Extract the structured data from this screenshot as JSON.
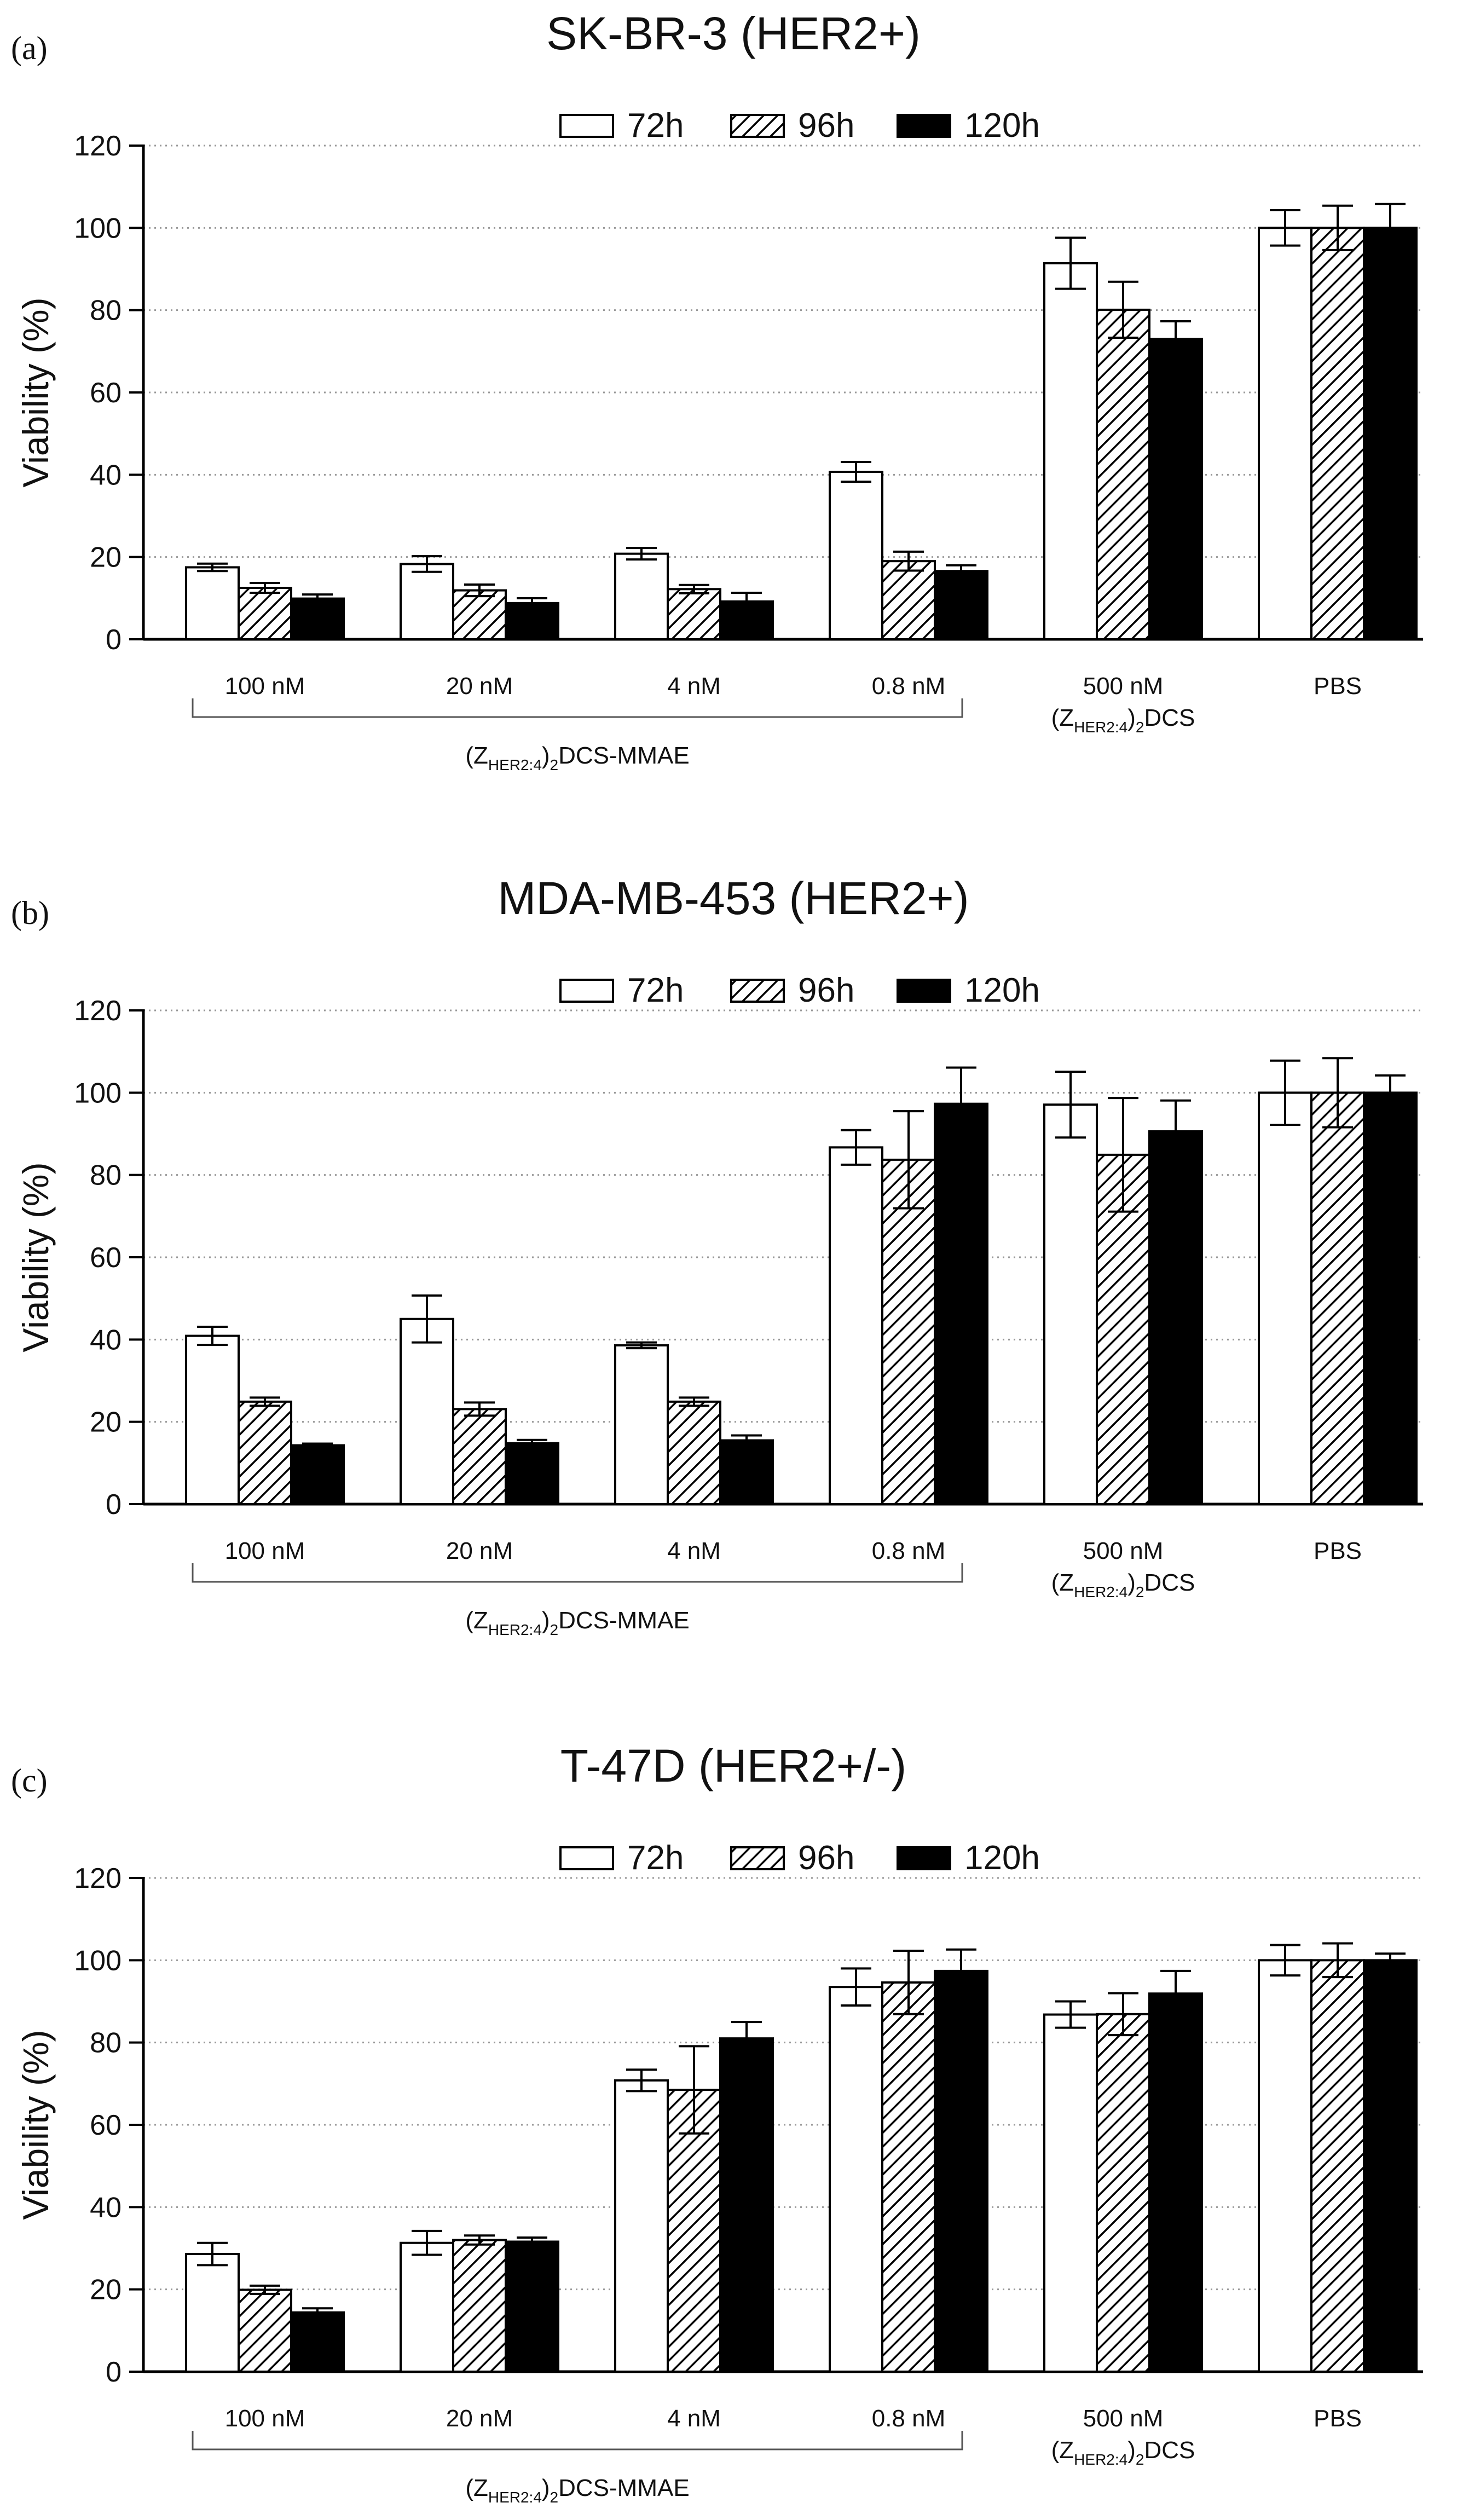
{
  "legend_swatch_names": [
    "72h",
    "96h",
    "120h"
  ],
  "chart_data": [
    {
      "type": "bar",
      "panel_label": "(a)",
      "title": "SK-BR-3 (HER2+)",
      "xlabel": "",
      "ylabel": "Viability (%)",
      "ylim": [
        0,
        120
      ],
      "yticks": [
        0,
        20,
        40,
        60,
        80,
        100,
        120
      ],
      "grid": true,
      "legend_position": "top-center",
      "categories": [
        "100 nM",
        "20 nM",
        "4 nM",
        "0.8 nM",
        "500 nM",
        "PBS"
      ],
      "group_labels": [
        {
          "prefix": "(Z",
          "sub1": "HER2:4",
          "mid": ")",
          "sub2": "2",
          "suffix": "DCS-MMAE",
          "spans": [
            0,
            3
          ]
        },
        {
          "prefix": "(Z",
          "sub1": "HER2:4",
          "mid": ")",
          "sub2": "2",
          "suffix": "DCS",
          "spans": [
            4,
            4
          ]
        }
      ],
      "series": [
        {
          "name": "72h",
          "fill": "#ffffff",
          "values": [
            17.5,
            18.3,
            20.8,
            40.7,
            91.4,
            100.0
          ],
          "errors": [
            0.9,
            1.9,
            1.4,
            2.4,
            6.2,
            4.3
          ]
        },
        {
          "name": "96h",
          "fill": "hatch",
          "values": [
            12.5,
            11.9,
            12.2,
            19.0,
            80.1,
            100.0
          ],
          "errors": [
            1.2,
            1.4,
            1.0,
            2.3,
            6.8,
            5.4
          ]
        },
        {
          "name": "120h",
          "fill": "#000000",
          "values": [
            9.9,
            8.8,
            9.2,
            16.6,
            73.0,
            100.0
          ],
          "errors": [
            1.0,
            1.2,
            2.1,
            1.4,
            4.3,
            5.8
          ]
        }
      ]
    },
    {
      "type": "bar",
      "panel_label": "(b)",
      "title": "MDA-MB-453 (HER2+)",
      "xlabel": "",
      "ylabel": "Viability (%)",
      "ylim": [
        0,
        120
      ],
      "yticks": [
        0,
        20,
        40,
        60,
        80,
        100,
        120
      ],
      "grid": true,
      "legend_position": "top-center",
      "categories": [
        "100 nM",
        "20 nM",
        "4 nM",
        "0.8 nM",
        "500 nM",
        "PBS"
      ],
      "group_labels": [
        {
          "prefix": "(Z",
          "sub1": "HER2:4",
          "mid": ")",
          "sub2": "2",
          "suffix": "DCS-MMAE",
          "spans": [
            0,
            3
          ]
        },
        {
          "prefix": "(Z",
          "sub1": "HER2:4",
          "mid": ")",
          "sub2": "2",
          "suffix": "DCS",
          "spans": [
            4,
            4
          ]
        }
      ],
      "series": [
        {
          "name": "72h",
          "fill": "#ffffff",
          "values": [
            40.9,
            45.0,
            38.6,
            86.7,
            97.1,
            100.0
          ],
          "errors": [
            2.2,
            5.7,
            0.7,
            4.2,
            8.0,
            7.8
          ]
        },
        {
          "name": "96h",
          "fill": "hatch",
          "values": [
            24.9,
            23.1,
            24.9,
            83.7,
            84.9,
            100.0
          ],
          "errors": [
            1.0,
            1.6,
            1.0,
            11.8,
            13.8,
            8.4
          ]
        },
        {
          "name": "120h",
          "fill": "#000000",
          "values": [
            14.3,
            14.8,
            15.5,
            97.3,
            90.6,
            100.0
          ],
          "errors": [
            0.4,
            0.8,
            1.2,
            8.8,
            7.5,
            4.2
          ]
        }
      ]
    },
    {
      "type": "bar",
      "panel_label": "(c)",
      "title": "T-47D (HER2+/-)",
      "xlabel": "",
      "ylabel": "Viability (%)",
      "ylim": [
        0,
        120
      ],
      "yticks": [
        0,
        20,
        40,
        60,
        80,
        100,
        120
      ],
      "grid": true,
      "legend_position": "top-center",
      "categories": [
        "100 nM",
        "20 nM",
        "4 nM",
        "0.8 nM",
        "500 nM",
        "PBS"
      ],
      "group_labels": [
        {
          "prefix": "(Z",
          "sub1": "HER2:4",
          "mid": ")",
          "sub2": "2",
          "suffix": "DCS-MMAE",
          "spans": [
            0,
            3
          ]
        },
        {
          "prefix": "(Z",
          "sub1": "HER2:4",
          "mid": ")",
          "sub2": "2",
          "suffix": "DCS",
          "spans": [
            4,
            4
          ]
        }
      ],
      "series": [
        {
          "name": "72h",
          "fill": "#ffffff",
          "values": [
            28.6,
            31.3,
            70.8,
            93.5,
            86.8,
            100.0
          ],
          "errors": [
            2.7,
            2.9,
            2.6,
            4.5,
            3.2,
            3.7
          ]
        },
        {
          "name": "96h",
          "fill": "hatch",
          "values": [
            19.9,
            32.0,
            68.5,
            94.6,
            86.9,
            100.0
          ],
          "errors": [
            1.0,
            1.1,
            10.6,
            7.7,
            5.1,
            4.1
          ]
        },
        {
          "name": "120h",
          "fill": "#000000",
          "values": [
            14.4,
            31.6,
            81.0,
            97.4,
            91.9,
            100.0
          ],
          "errors": [
            1.0,
            1.0,
            4.0,
            5.2,
            5.5,
            1.6
          ]
        }
      ]
    }
  ]
}
